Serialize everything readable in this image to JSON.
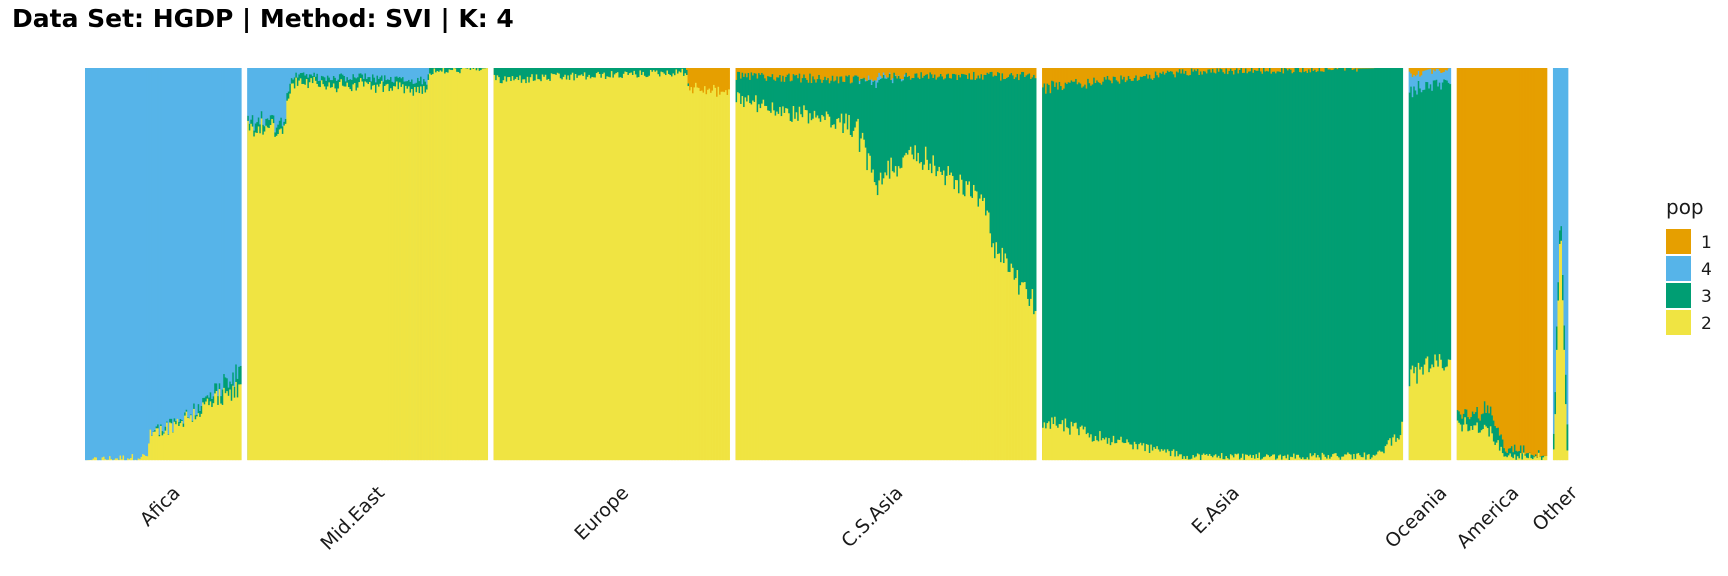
{
  "chart_data": {
    "type": "bar",
    "subtype": "stacked-admixture-proportions",
    "title": "Data Set: HGDP | Method: SVI | K: 4",
    "xlabel": "",
    "ylabel": "",
    "ylim": [
      0,
      1
    ],
    "grid": false,
    "legend": {
      "title": "pop",
      "position": "right",
      "entries": [
        {
          "label": "1",
          "color": "#E69F00"
        },
        {
          "label": "4",
          "color": "#56B4E9"
        },
        {
          "label": "3",
          "color": "#009E73"
        },
        {
          "label": "2",
          "color": "#F0E442"
        }
      ]
    },
    "stack_order_bottom_to_top": [
      "2",
      "3",
      "4",
      "1"
    ],
    "groups": [
      {
        "label": "Afica",
        "n": 104,
        "profile": [
          {
            "at": 0.0,
            "2": 0.0,
            "3": 0.0,
            "4": 1.0,
            "1": 0.0
          },
          {
            "at": 0.4,
            "2": 0.01,
            "3": 0.0,
            "4": 0.99,
            "1": 0.0
          },
          {
            "at": 0.41,
            "2": 0.06,
            "3": 0.0,
            "4": 0.94,
            "1": 0.0
          },
          {
            "at": 0.7,
            "2": 0.12,
            "3": 0.01,
            "4": 0.87,
            "1": 0.0
          },
          {
            "at": 1.0,
            "2": 0.18,
            "3": 0.04,
            "4": 0.78,
            "1": 0.0
          }
        ]
      },
      {
        "label": "Mid.East",
        "n": 160,
        "profile": [
          {
            "at": 0.0,
            "2": 0.84,
            "3": 0.02,
            "4": 0.14,
            "1": 0.0
          },
          {
            "at": 0.15,
            "2": 0.85,
            "3": 0.02,
            "4": 0.13,
            "1": 0.0
          },
          {
            "at": 0.18,
            "2": 0.96,
            "3": 0.02,
            "4": 0.02,
            "1": 0.0
          },
          {
            "at": 0.75,
            "2": 0.95,
            "3": 0.02,
            "4": 0.03,
            "1": 0.0
          },
          {
            "at": 0.76,
            "2": 0.99,
            "3": 0.01,
            "4": 0.0,
            "1": 0.0
          },
          {
            "at": 1.0,
            "2": 1.0,
            "3": 0.0,
            "4": 0.0,
            "1": 0.0
          }
        ]
      },
      {
        "label": "Europe",
        "n": 157,
        "profile": [
          {
            "at": 0.0,
            "2": 0.97,
            "3": 0.03,
            "4": 0.0,
            "1": 0.0
          },
          {
            "at": 0.82,
            "2": 0.99,
            "3": 0.01,
            "4": 0.0,
            "1": 0.0
          },
          {
            "at": 0.83,
            "2": 0.95,
            "3": 0.0,
            "4": 0.0,
            "1": 0.05
          },
          {
            "at": 1.0,
            "2": 0.94,
            "3": 0.0,
            "4": 0.0,
            "1": 0.06
          }
        ]
      },
      {
        "label": "C.S.Asia",
        "n": 200,
        "profile": [
          {
            "at": 0.0,
            "2": 0.92,
            "3": 0.06,
            "4": 0.0,
            "1": 0.02
          },
          {
            "at": 0.4,
            "2": 0.85,
            "3": 0.12,
            "4": 0.0,
            "1": 0.03
          },
          {
            "at": 0.47,
            "2": 0.7,
            "3": 0.27,
            "4": 0.01,
            "1": 0.02
          },
          {
            "at": 0.58,
            "2": 0.8,
            "3": 0.18,
            "4": 0.0,
            "1": 0.02
          },
          {
            "at": 0.84,
            "2": 0.65,
            "3": 0.33,
            "4": 0.0,
            "1": 0.02
          },
          {
            "at": 0.85,
            "2": 0.55,
            "3": 0.43,
            "4": 0.0,
            "1": 0.02
          },
          {
            "at": 1.0,
            "2": 0.4,
            "3": 0.58,
            "4": 0.0,
            "1": 0.02
          }
        ]
      },
      {
        "label": "E.Asia",
        "n": 240,
        "profile": [
          {
            "at": 0.0,
            "2": 0.1,
            "3": 0.85,
            "4": 0.0,
            "1": 0.05
          },
          {
            "at": 0.2,
            "2": 0.05,
            "3": 0.92,
            "4": 0.0,
            "1": 0.03
          },
          {
            "at": 0.4,
            "2": 0.01,
            "3": 0.98,
            "4": 0.0,
            "1": 0.01
          },
          {
            "at": 0.93,
            "2": 0.01,
            "3": 0.99,
            "4": 0.0,
            "1": 0.0
          },
          {
            "at": 1.0,
            "2": 0.08,
            "3": 0.92,
            "4": 0.0,
            "1": 0.0
          }
        ]
      },
      {
        "label": "Oceania",
        "n": 28,
        "profile": [
          {
            "at": 0.0,
            "2": 0.22,
            "3": 0.72,
            "4": 0.04,
            "1": 0.02
          },
          {
            "at": 1.0,
            "2": 0.25,
            "3": 0.72,
            "4": 0.03,
            "1": 0.0
          }
        ]
      },
      {
        "label": "America",
        "n": 60,
        "profile": [
          {
            "at": 0.0,
            "2": 0.1,
            "3": 0.02,
            "4": 0.0,
            "1": 0.88
          },
          {
            "at": 0.35,
            "2": 0.08,
            "3": 0.05,
            "4": 0.0,
            "1": 0.87
          },
          {
            "at": 0.55,
            "2": 0.01,
            "3": 0.02,
            "4": 0.0,
            "1": 0.97
          },
          {
            "at": 1.0,
            "2": 0.01,
            "3": 0.0,
            "4": 0.0,
            "1": 0.99
          }
        ]
      },
      {
        "label": "Other",
        "n": 10,
        "profile": [
          {
            "at": 0.0,
            "2": 0.02,
            "3": 0.05,
            "4": 0.93,
            "1": 0.0
          },
          {
            "at": 0.5,
            "2": 0.6,
            "3": 0.05,
            "4": 0.35,
            "1": 0.0
          },
          {
            "at": 1.0,
            "2": 0.02,
            "3": 0.06,
            "4": 0.92,
            "1": 0.0
          }
        ]
      }
    ]
  }
}
